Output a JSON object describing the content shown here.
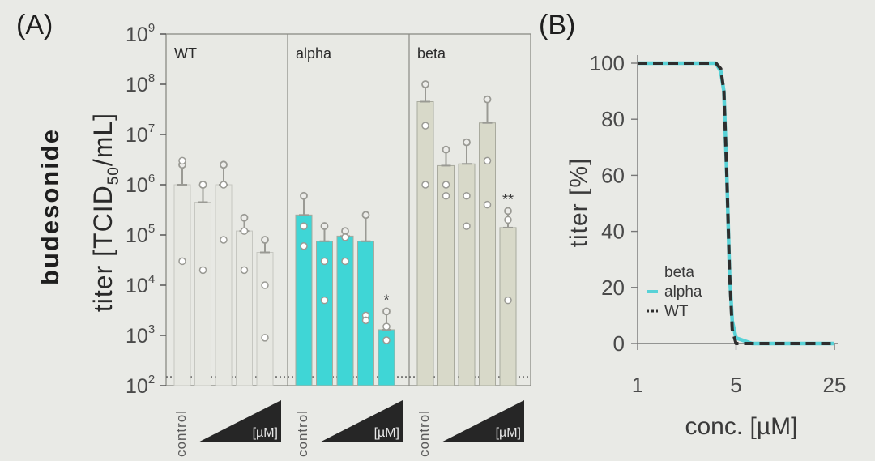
{
  "labels": {
    "panel_a": "(A)",
    "panel_b": "(B)",
    "row_label": "budesonide"
  },
  "colors": {
    "wt": "#e6e7e1",
    "alpha": "#3fd6d6",
    "beta": "#d8d9c9",
    "frame": "#8a8b85",
    "wedge": "#262626"
  },
  "chart_data": [
    {
      "type": "bar",
      "ylabel_main": "titer [TCID",
      "ylabel_sub": "50",
      "ylabel_tail": "/mL]",
      "yscale": "log",
      "ylim": [
        100,
        1000000000
      ],
      "y_ticks": [
        {
          "value": 100,
          "base": "10",
          "exp": "2"
        },
        {
          "value": 1000,
          "base": "10",
          "exp": "3"
        },
        {
          "value": 10000,
          "base": "10",
          "exp": "4"
        },
        {
          "value": 100000,
          "base": "10",
          "exp": "5"
        },
        {
          "value": 1000000,
          "base": "10",
          "exp": "6"
        },
        {
          "value": 10000000,
          "base": "10",
          "exp": "7"
        },
        {
          "value": 100000000,
          "base": "10",
          "exp": "8"
        },
        {
          "value": 1000000000,
          "base": "10",
          "exp": "9"
        }
      ],
      "detection_limit": 150,
      "x_label_control": "control",
      "x_label_dose": "[µM]",
      "groups": [
        {
          "name": "WT",
          "color_key": "wt",
          "bars": [
            {
              "value": 1000000,
              "err": 2500000,
              "points": [
                3000000,
                30000
              ]
            },
            {
              "value": 450000,
              "err": 1000000,
              "points": [
                1000000,
                20000
              ]
            },
            {
              "value": 1000000,
              "err": 2500000,
              "points": [
                1000000,
                80000
              ]
            },
            {
              "value": 120000,
              "err": 220000,
              "points": [
                120000,
                20000
              ]
            },
            {
              "value": 45000,
              "err": 80000,
              "points": [
                900,
                10000
              ]
            }
          ],
          "asterisks": [
            "",
            "",
            "",
            "",
            ""
          ]
        },
        {
          "name": "alpha",
          "color_key": "alpha",
          "bars": [
            {
              "value": 250000,
              "err": 600000,
              "points": [
                150000,
                60000
              ]
            },
            {
              "value": 75000,
              "err": 150000,
              "points": [
                5000,
                30000
              ]
            },
            {
              "value": 95000,
              "err": 120000,
              "points": [
                90000,
                30000
              ]
            },
            {
              "value": 75000,
              "err": 250000,
              "points": [
                2500,
                2000
              ]
            },
            {
              "value": 1300,
              "err": 3000,
              "points": [
                1500,
                800
              ]
            }
          ],
          "asterisks": [
            "",
            "",
            "",
            "",
            "*"
          ]
        },
        {
          "name": "beta",
          "color_key": "beta",
          "bars": [
            {
              "value": 45000000,
              "err": 100000000,
              "points": [
                15000000,
                1000000
              ]
            },
            {
              "value": 2400000,
              "err": 5000000,
              "points": [
                600000,
                1000000
              ]
            },
            {
              "value": 2600000,
              "err": 7000000,
              "points": [
                600000,
                150000
              ]
            },
            {
              "value": 17000000,
              "err": 50000000,
              "points": [
                3000000,
                400000
              ]
            },
            {
              "value": 140000,
              "err": 300000,
              "points": [
                200000,
                5000
              ]
            }
          ],
          "asterisks": [
            "",
            "",
            "",
            "",
            "**"
          ]
        }
      ]
    },
    {
      "type": "line",
      "ylabel": "titer [%]",
      "xlabel": "conc. [µM]",
      "xscale": "log",
      "xlim": [
        1,
        25
      ],
      "ylim": [
        0,
        100
      ],
      "x_ticks": [
        1,
        5,
        25
      ],
      "y_ticks": [
        0,
        20,
        40,
        60,
        80,
        100
      ],
      "series": [
        {
          "name": "beta",
          "style": "none",
          "color": "#e9eae6",
          "points": []
        },
        {
          "name": "alpha",
          "style": "solid",
          "color": "#58d2d7",
          "points": [
            [
              1,
              100
            ],
            [
              3.6,
              100
            ],
            [
              3.9,
              97
            ],
            [
              4.1,
              90
            ],
            [
              4.3,
              60
            ],
            [
              4.5,
              25
            ],
            [
              4.7,
              8
            ],
            [
              5.0,
              2
            ],
            [
              6.5,
              0
            ],
            [
              25,
              0
            ]
          ]
        },
        {
          "name": "WT",
          "style": "dashed",
          "color": "#2e2e2e",
          "points": [
            [
              1,
              100
            ],
            [
              3.6,
              100
            ],
            [
              3.9,
              98
            ],
            [
              4.1,
              90
            ],
            [
              4.3,
              60
            ],
            [
              4.5,
              25
            ],
            [
              4.7,
              5
            ],
            [
              5.0,
              0
            ],
            [
              25,
              0
            ]
          ]
        }
      ],
      "legend_placement": "center-right"
    }
  ]
}
